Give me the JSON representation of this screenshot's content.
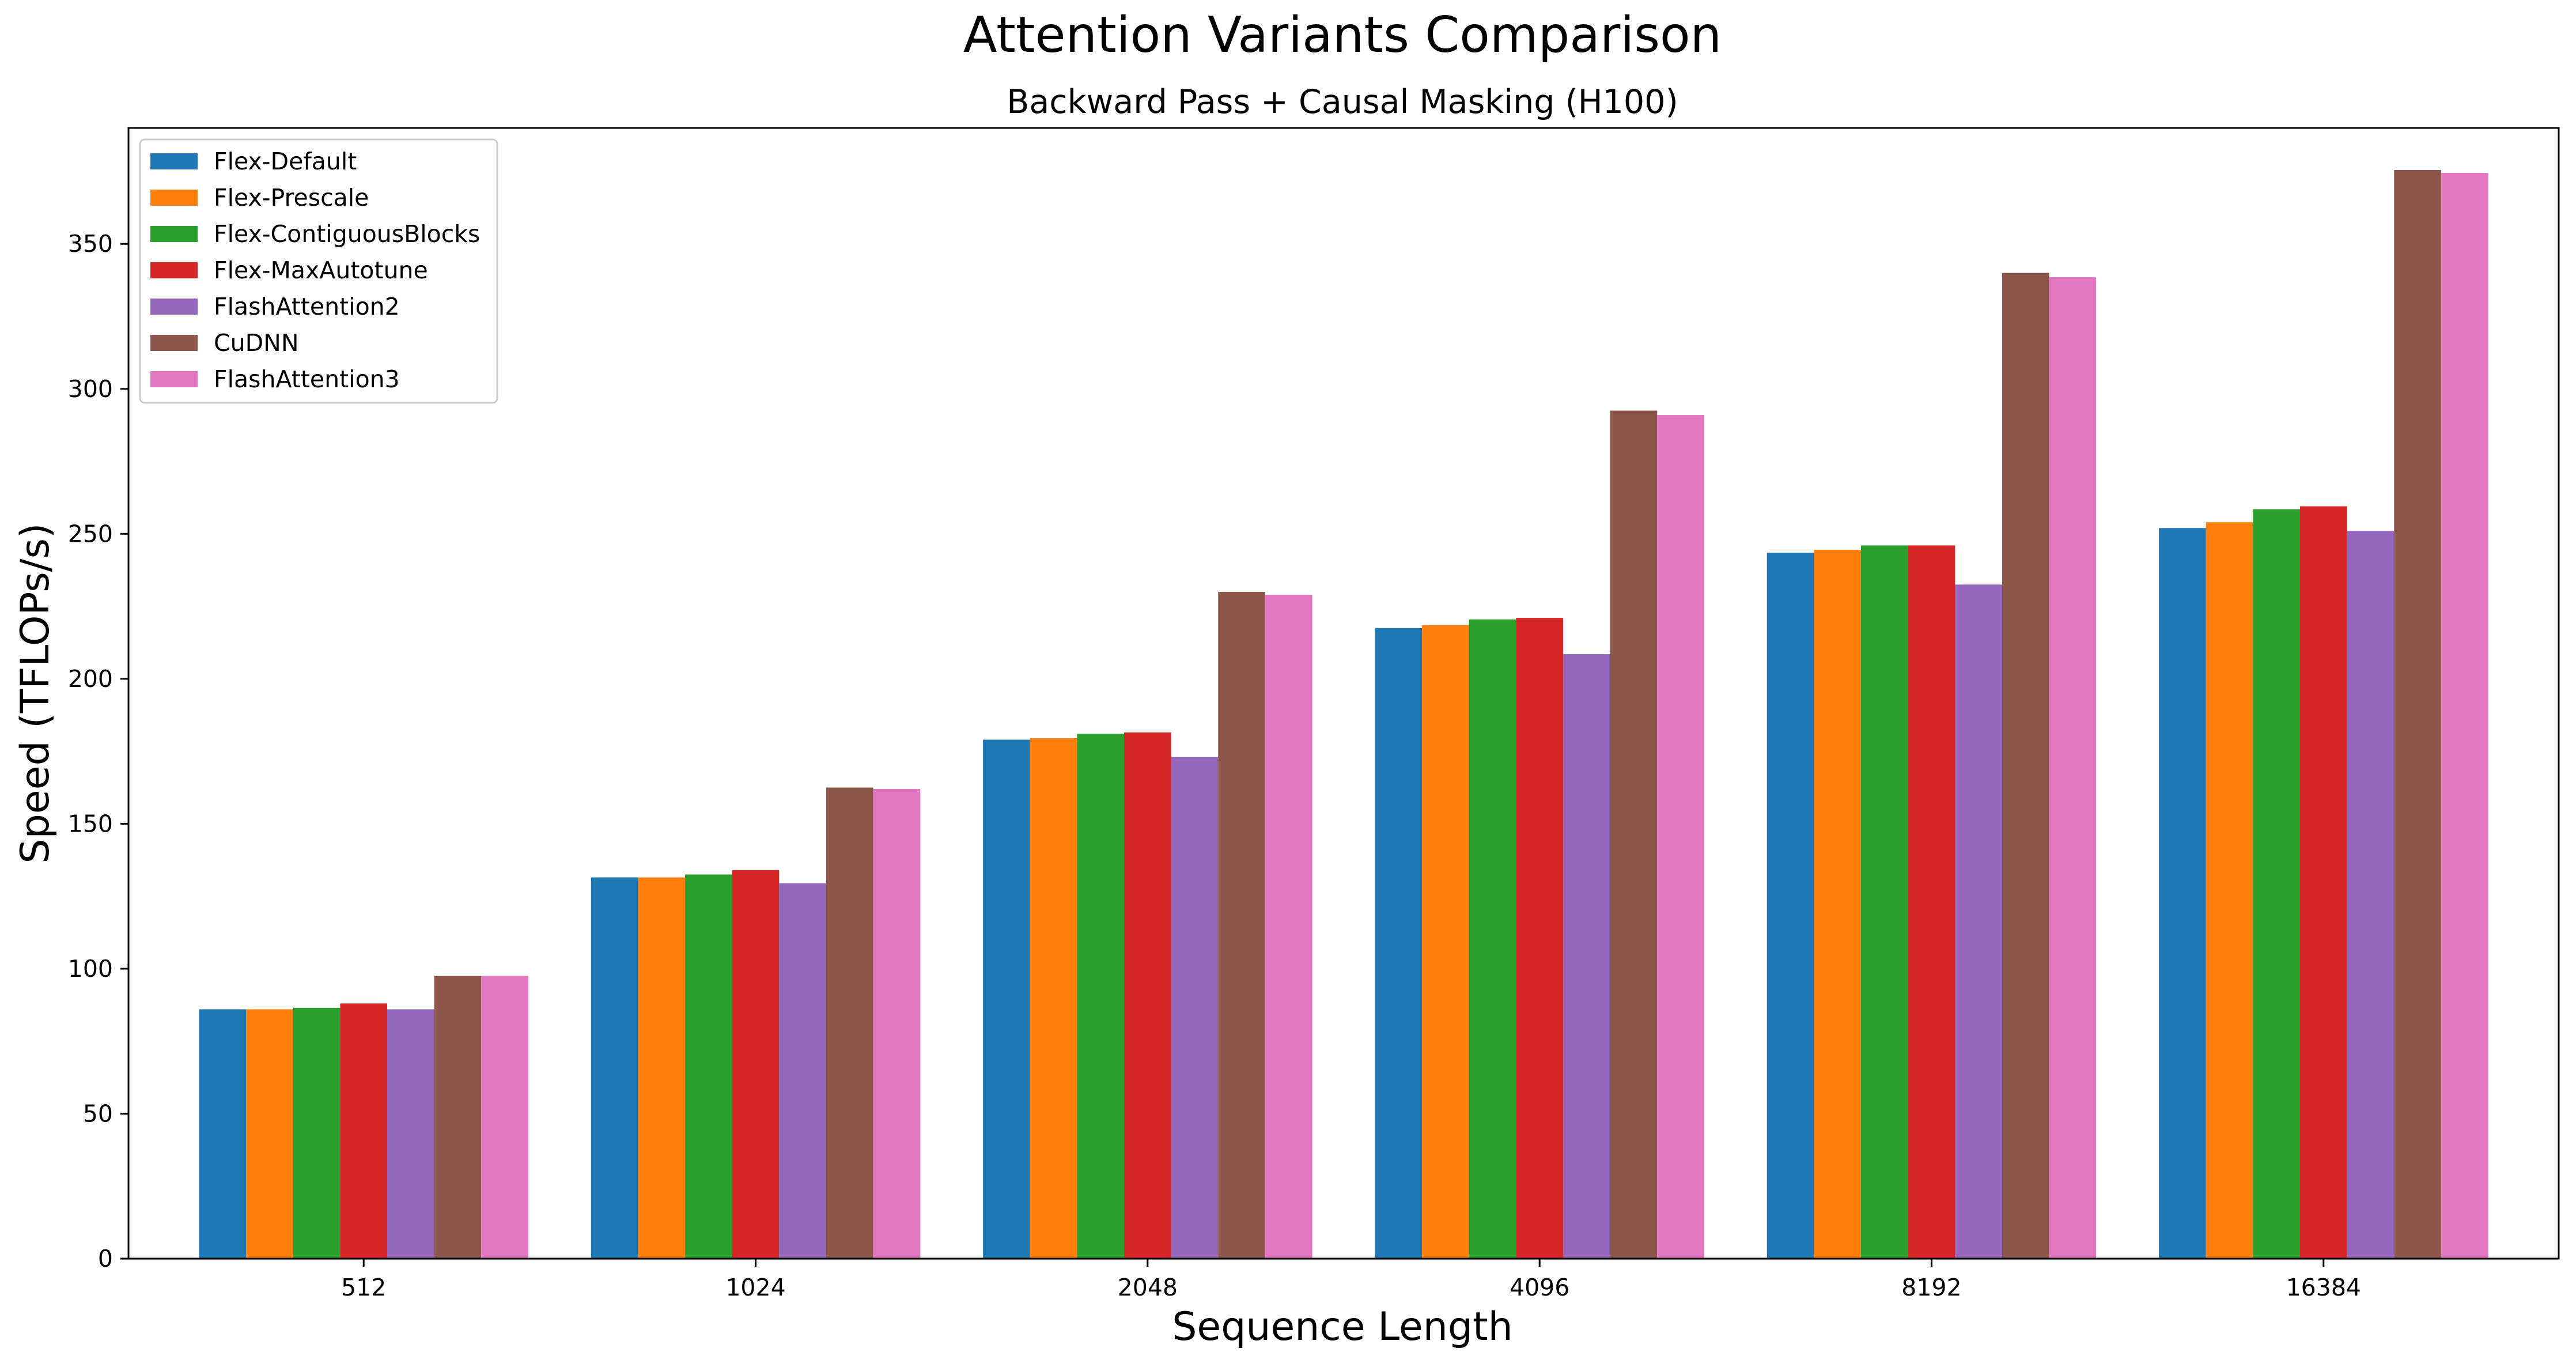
{
  "chart_data": {
    "type": "bar",
    "title": "Attention Variants Comparison",
    "subtitle": "Backward Pass + Causal Masking (H100)",
    "xlabel": "Sequence Length",
    "ylabel": "Speed (TFLOPs/s)",
    "categories": [
      "512",
      "1024",
      "2048",
      "4096",
      "8192",
      "16384"
    ],
    "ylim": [
      0,
      390
    ],
    "yticks": [
      0,
      50,
      100,
      150,
      200,
      250,
      300,
      350
    ],
    "grid": false,
    "legend_position": "top-left",
    "series": [
      {
        "name": "Flex-Default",
        "color": "#1f77b4",
        "values": [
          86,
          131.5,
          179,
          217.5,
          243.5,
          252
        ]
      },
      {
        "name": "Flex-Prescale",
        "color": "#ff7f0e",
        "values": [
          86,
          131.5,
          179.5,
          218.5,
          244.5,
          254
        ]
      },
      {
        "name": "Flex-ContiguousBlocks",
        "color": "#2ca02c",
        "values": [
          86.5,
          132.5,
          181,
          220.5,
          246,
          258.5
        ]
      },
      {
        "name": "Flex-MaxAutotune",
        "color": "#d62728",
        "values": [
          88,
          134,
          181.5,
          221,
          246,
          259.5
        ]
      },
      {
        "name": "FlashAttention2",
        "color": "#9467bd",
        "values": [
          86,
          129.5,
          173,
          208.5,
          232.5,
          251
        ]
      },
      {
        "name": "CuDNN",
        "color": "#8c564b",
        "values": [
          97.5,
          162.5,
          230,
          292.5,
          340,
          375.5
        ]
      },
      {
        "name": "FlashAttention3",
        "color": "#e377c2",
        "values": [
          97.5,
          162,
          229,
          291,
          338.5,
          374.5
        ]
      }
    ]
  }
}
